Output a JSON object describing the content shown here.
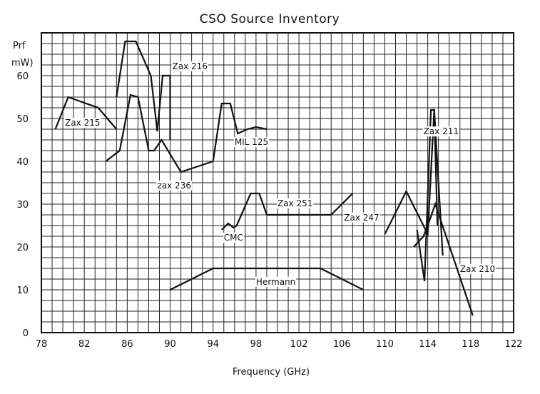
{
  "chart_data": {
    "type": "line",
    "title": "CSO Source Inventory",
    "xlabel": "Frequency (GHz)",
    "ylabel": [
      "Prf",
      "mW)"
    ],
    "xlim": [
      78,
      122
    ],
    "ylim": [
      0,
      70
    ],
    "x_ticks": [
      78,
      82,
      86,
      90,
      94,
      98,
      102,
      106,
      110,
      114,
      118,
      122
    ],
    "y_ticks": [
      0,
      10,
      20,
      30,
      40,
      50,
      60
    ],
    "grid": true,
    "legend": "none",
    "series": [
      {
        "name": "Zax 215",
        "label": "Zax 215",
        "label_at": [
          80.2,
          48.3
        ],
        "x": [
          79.3,
          80.5,
          83.3,
          85.0
        ],
        "y": [
          47.5,
          55.0,
          52.5,
          47.5
        ]
      },
      {
        "name": "Zax 216",
        "label": "Zax 216",
        "label_at": [
          90.2,
          61.5
        ],
        "x": [
          85.0,
          85.8,
          86.8,
          88.2,
          88.8,
          89.3,
          90.0,
          90.0
        ],
        "y": [
          55.0,
          68.0,
          68.0,
          60.0,
          47.0,
          60.0,
          60.0,
          45.0
        ]
      },
      {
        "name": "zax 236",
        "label": "zax 236",
        "label_at": [
          88.8,
          33.7
        ],
        "x": [
          84.0,
          85.3,
          86.3,
          87.0,
          88.0,
          88.5,
          89.2,
          91.0,
          94.0
        ],
        "y": [
          40.0,
          42.5,
          55.5,
          55.0,
          42.5,
          42.5,
          45.0,
          37.5,
          40.0
        ]
      },
      {
        "name": "MIL 125",
        "label": "MIL 125",
        "label_at": [
          96.0,
          43.8
        ],
        "x": [
          94.0,
          94.8,
          95.6,
          96.3,
          97.2,
          98.0,
          99.0
        ],
        "y": [
          40.0,
          53.5,
          53.5,
          46.5,
          47.5,
          48.0,
          47.5
        ]
      },
      {
        "name": "CMC",
        "label": "CMC",
        "label_at": [
          95.0,
          21.5
        ],
        "x": [
          94.8,
          95.4,
          95.9,
          96.2,
          97.5,
          98.3,
          99.0
        ],
        "y": [
          24.0,
          25.5,
          24.5,
          25.0,
          32.5,
          32.5,
          27.5
        ]
      },
      {
        "name": "Zax 251",
        "label": "Zax 251",
        "label_at": [
          100.0,
          29.5
        ],
        "x": [
          99.0,
          105.0
        ],
        "y": [
          27.5,
          27.5
        ]
      },
      {
        "name": "Zax 247",
        "label": "Zax 247",
        "label_at": [
          106.2,
          26.2
        ],
        "x": [
          105.0,
          107.0
        ],
        "y": [
          27.5,
          32.5
        ]
      },
      {
        "name": "Hermann",
        "label": "Hermann",
        "label_at": [
          98.0,
          11.2
        ],
        "x": [
          90.0,
          94.0,
          104.0,
          108.0
        ],
        "y": [
          10.0,
          15.0,
          15.0,
          10.0
        ]
      },
      {
        "name": "Zax 211",
        "label": "Zax 211",
        "label_at": [
          113.6,
          46.3
        ],
        "x": [
          110.0,
          112.0,
          114.0,
          114.6,
          115.4
        ],
        "y": [
          23.0,
          33.0,
          23.0,
          52.0,
          18.0
        ]
      },
      {
        "name": "Zax 210",
        "label": "Zax 210",
        "label_at": [
          117.0,
          14.2
        ],
        "x": [
          112.7,
          113.6,
          114.0,
          114.7,
          118.2
        ],
        "y": [
          20.0,
          22.5,
          25.0,
          30.0,
          4.0
        ]
      },
      {
        "name": "",
        "label": "",
        "x": [
          113.0,
          113.7,
          114.3,
          114.6,
          114.9
        ],
        "y": [
          24.0,
          12.0,
          52.0,
          52.0,
          25.0
        ]
      }
    ]
  }
}
